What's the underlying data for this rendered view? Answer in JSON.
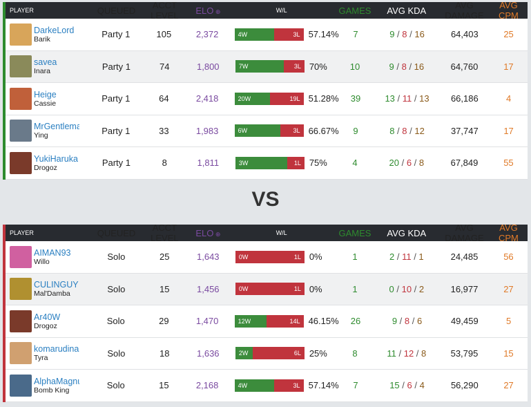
{
  "headers": {
    "player": "PLAYER",
    "queued": "QUEUED",
    "level": "ACCT LEVEL",
    "elo": "ELO",
    "wl": "W/L",
    "games": "GAMES",
    "kda": "AVG KDA",
    "damage": "AVG DAMAGE",
    "cpm": "AVG CPM"
  },
  "vs_label": "VS",
  "teams": [
    {
      "side": "blue",
      "players": [
        {
          "name": "DarkeLord",
          "champion": "Barik",
          "queued": "Party 1",
          "level": "105",
          "elo": "2,372",
          "wins": 4,
          "losses": 3,
          "wins_label": "4W",
          "losses_label": "3L",
          "winrate": "57.14%",
          "games": "7",
          "kills": "9",
          "deaths": "8",
          "assists": "16",
          "damage": "64,403",
          "cpm": "25",
          "avatar_color": "#d8a55a"
        },
        {
          "name": "savea",
          "champion": "Inara",
          "queued": "Party 1",
          "level": "74",
          "elo": "1,800",
          "wins": 7,
          "losses": 3,
          "wins_label": "7W",
          "losses_label": "3L",
          "winrate": "70%",
          "games": "10",
          "kills": "9",
          "deaths": "8",
          "assists": "16",
          "damage": "64,760",
          "cpm": "17",
          "avatar_color": "#8a8a5a"
        },
        {
          "name": "Heige",
          "champion": "Cassie",
          "queued": "Party 1",
          "level": "64",
          "elo": "2,418",
          "wins": 20,
          "losses": 19,
          "wins_label": "20W",
          "losses_label": "19L",
          "winrate": "51.28%",
          "games": "39",
          "kills": "13",
          "deaths": "11",
          "assists": "13",
          "damage": "66,186",
          "cpm": "4",
          "avatar_color": "#c0603a"
        },
        {
          "name": "MrGentleman",
          "champion": "Ying",
          "queued": "Party 1",
          "level": "33",
          "elo": "1,983",
          "wins": 6,
          "losses": 3,
          "wins_label": "6W",
          "losses_label": "3L",
          "winrate": "66.67%",
          "games": "9",
          "kills": "8",
          "deaths": "8",
          "assists": "12",
          "damage": "37,747",
          "cpm": "17",
          "avatar_color": "#6a7a8a"
        },
        {
          "name": "YukiHaruka",
          "champion": "Drogoz",
          "queued": "Party 1",
          "level": "8",
          "elo": "1,811",
          "wins": 3,
          "losses": 1,
          "wins_label": "3W",
          "losses_label": "1L",
          "winrate": "75%",
          "games": "4",
          "kills": "20",
          "deaths": "6",
          "assists": "8",
          "damage": "67,849",
          "cpm": "55",
          "avatar_color": "#7a3a2a"
        }
      ]
    },
    {
      "side": "red",
      "players": [
        {
          "name": "AIMAN93",
          "champion": "Willo",
          "queued": "Solo",
          "level": "25",
          "elo": "1,643",
          "wins": 0,
          "losses": 1,
          "wins_label": "0W",
          "losses_label": "1L",
          "winrate": "0%",
          "games": "1",
          "kills": "2",
          "deaths": "11",
          "assists": "1",
          "damage": "24,485",
          "cpm": "56",
          "avatar_color": "#d060a0"
        },
        {
          "name": "CULINGUY",
          "champion": "Mal'Damba",
          "queued": "Solo",
          "level": "15",
          "elo": "1,456",
          "wins": 0,
          "losses": 1,
          "wins_label": "0W",
          "losses_label": "1L",
          "winrate": "0%",
          "games": "1",
          "kills": "0",
          "deaths": "10",
          "assists": "2",
          "damage": "16,977",
          "cpm": "27",
          "avatar_color": "#b09030"
        },
        {
          "name": "Ar40W",
          "champion": "Drogoz",
          "queued": "Solo",
          "level": "29",
          "elo": "1,470",
          "wins": 12,
          "losses": 14,
          "wins_label": "12W",
          "losses_label": "14L",
          "winrate": "46.15%",
          "games": "26",
          "kills": "9",
          "deaths": "8",
          "assists": "6",
          "damage": "49,459",
          "cpm": "5",
          "avatar_color": "#7a3a2a"
        },
        {
          "name": "komarudina",
          "champion": "Tyra",
          "queued": "Solo",
          "level": "18",
          "elo": "1,636",
          "wins": 2,
          "losses": 6,
          "wins_label": "2W",
          "losses_label": "6L",
          "winrate": "25%",
          "games": "8",
          "kills": "11",
          "deaths": "12",
          "assists": "8",
          "damage": "53,795",
          "cpm": "15",
          "avatar_color": "#d0a070"
        },
        {
          "name": "AlphaMagnus",
          "champion": "Bomb King",
          "queued": "Solo",
          "level": "15",
          "elo": "2,168",
          "wins": 4,
          "losses": 3,
          "wins_label": "4W",
          "losses_label": "3L",
          "winrate": "57.14%",
          "games": "7",
          "kills": "15",
          "deaths": "6",
          "assists": "4",
          "damage": "56,290",
          "cpm": "27",
          "avatar_color": "#4a6a8a"
        }
      ]
    }
  ]
}
